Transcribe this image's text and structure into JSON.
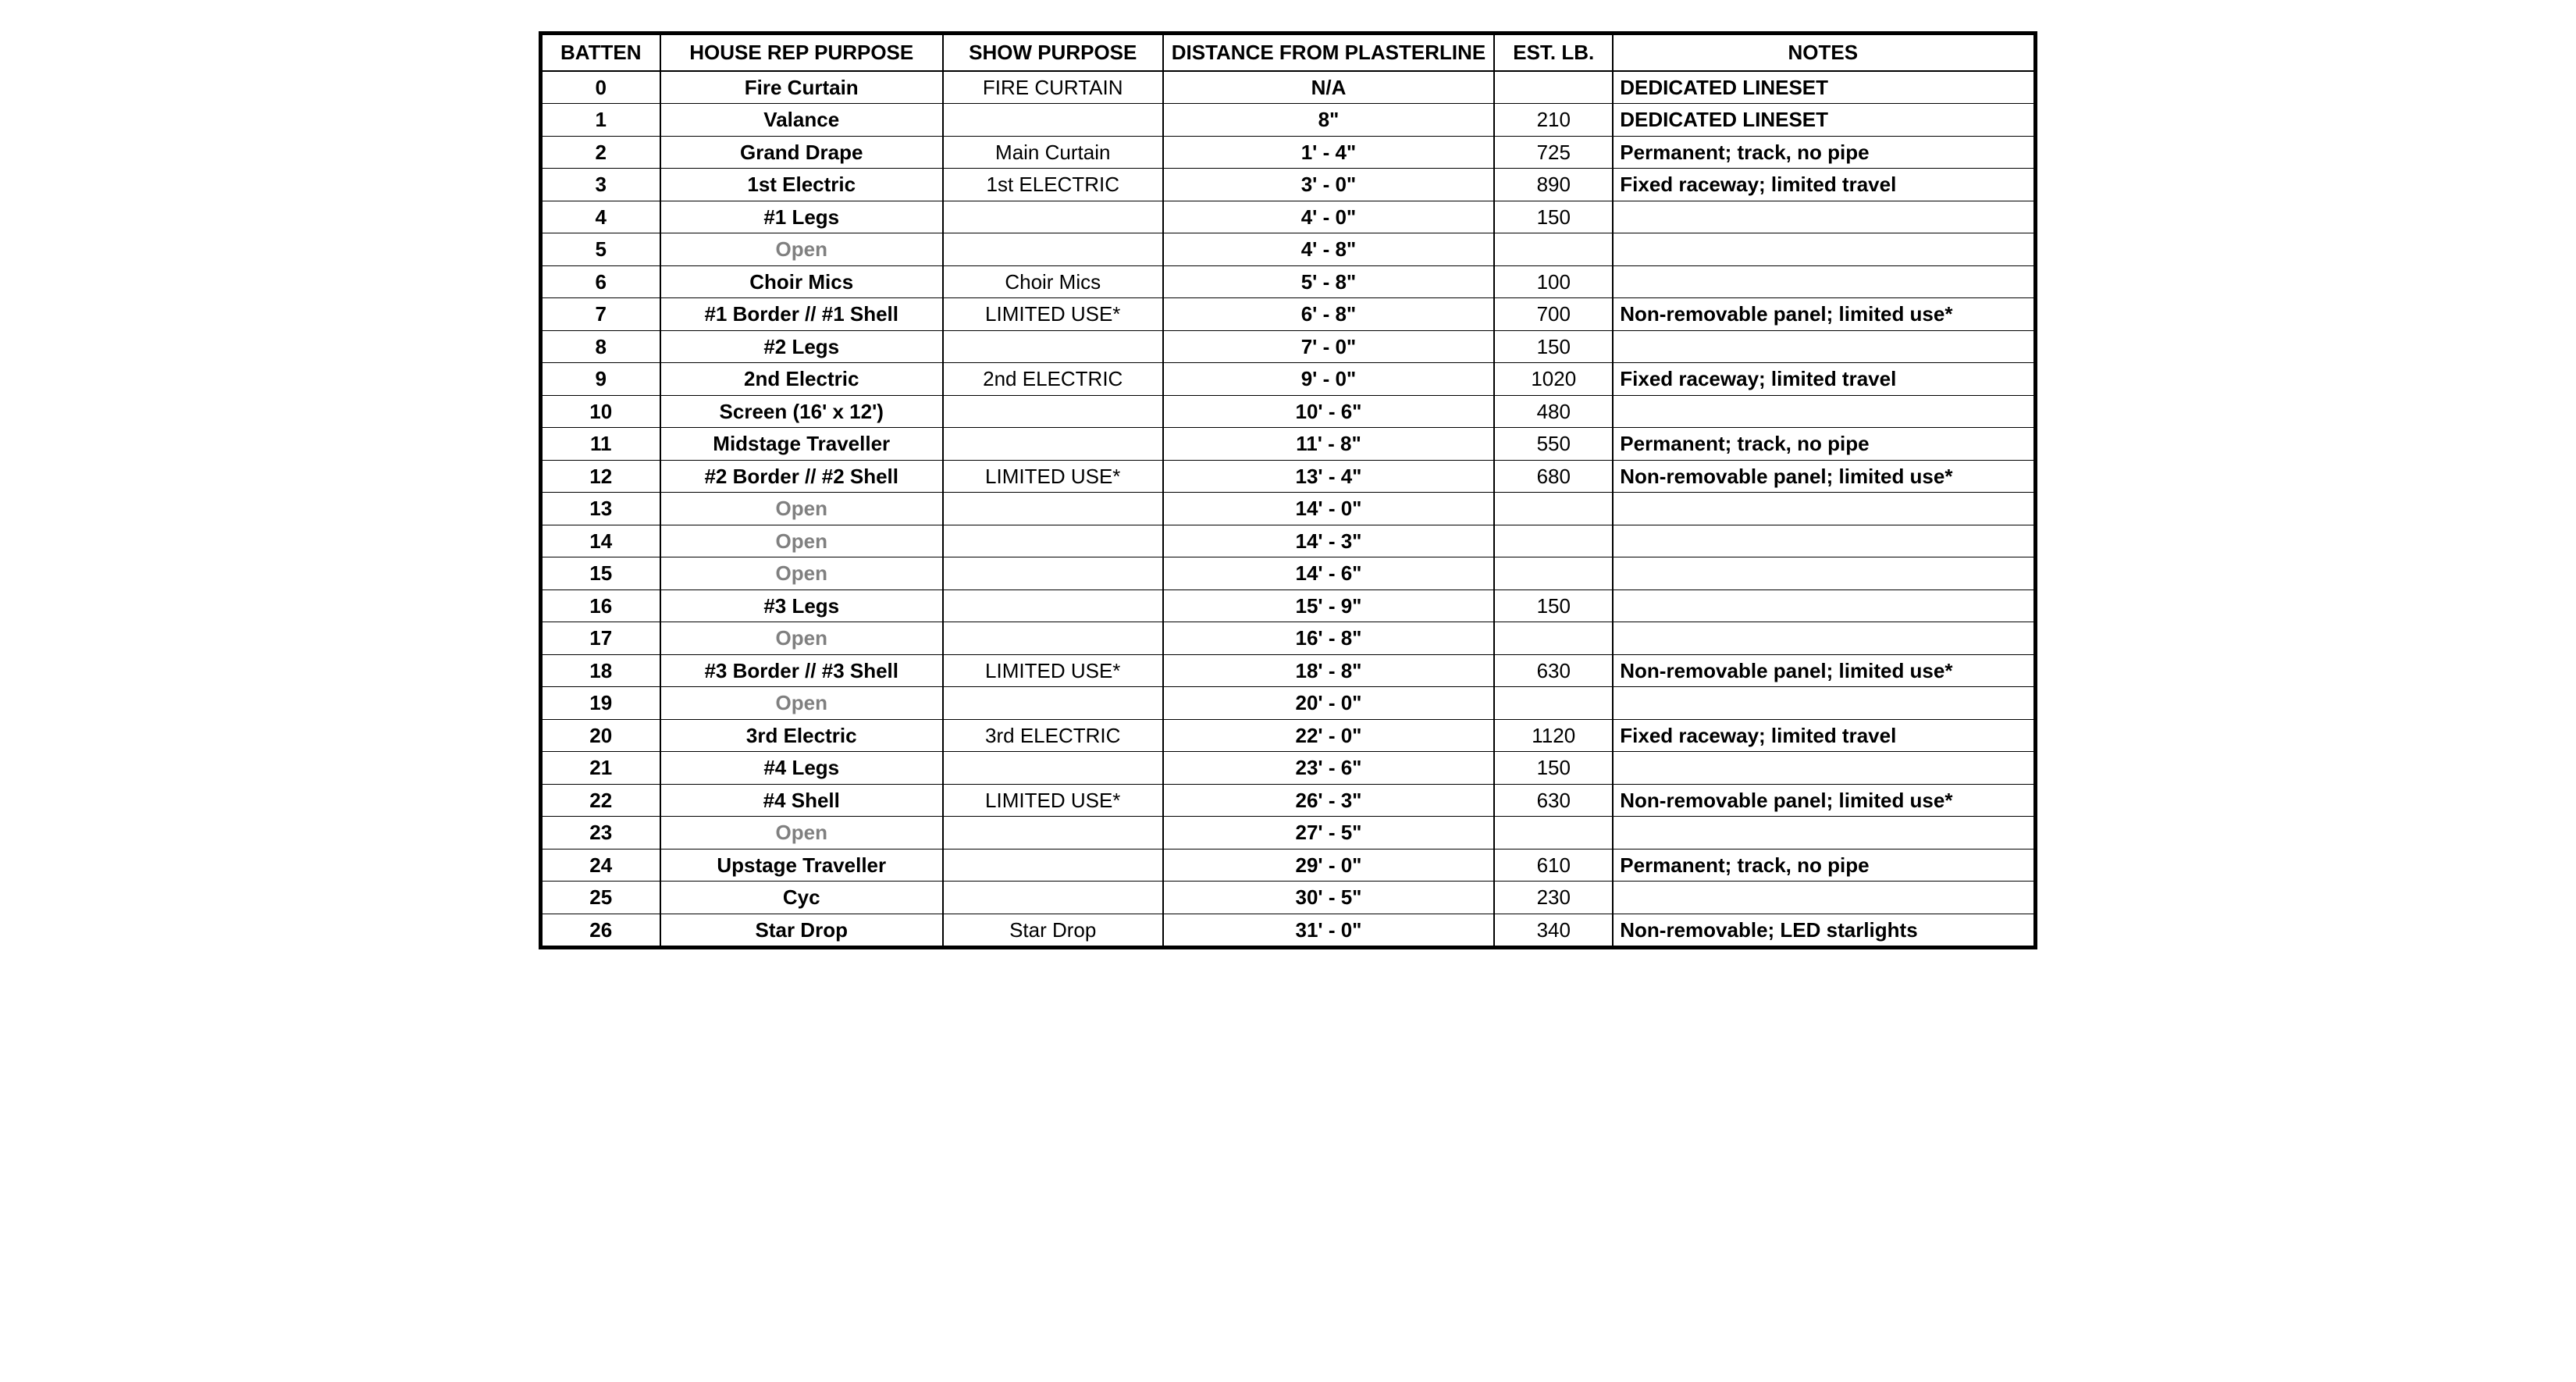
{
  "headers": {
    "batten": "BATTEN",
    "house": "HOUSE REP PURPOSE",
    "show": "SHOW PURPOSE",
    "dist": "DISTANCE FROM PLASTERLINE",
    "lb": "EST. LB.",
    "notes": "NOTES"
  },
  "rows": [
    {
      "batten": "0",
      "house": "Fire Curtain",
      "show": "FIRE CURTAIN",
      "dist": "N/A",
      "lb": "",
      "notes": "DEDICATED LINESET"
    },
    {
      "batten": "1",
      "house": "Valance",
      "show": "",
      "dist": "8\"",
      "lb": "210",
      "notes": "DEDICATED LINESET"
    },
    {
      "batten": "2",
      "house": "Grand Drape",
      "show": "Main Curtain",
      "dist": "1' - 4\"",
      "lb": "725",
      "notes": "Permanent; track, no pipe"
    },
    {
      "batten": "3",
      "house": "1st Electric",
      "show": "1st ELECTRIC",
      "dist": "3' - 0\"",
      "lb": "890",
      "notes": "Fixed raceway; limited travel"
    },
    {
      "batten": "4",
      "house": "#1 Legs",
      "show": "",
      "dist": "4' - 0\"",
      "lb": "150",
      "notes": ""
    },
    {
      "batten": "5",
      "house": "Open",
      "open": true,
      "show": "",
      "dist": "4' - 8\"",
      "lb": "",
      "notes": ""
    },
    {
      "batten": "6",
      "house": "Choir Mics",
      "show": "Choir Mics",
      "dist": "5' - 8\"",
      "lb": "100",
      "notes": ""
    },
    {
      "batten": "7",
      "house": "#1 Border // #1 Shell",
      "show": "LIMITED USE*",
      "dist": "6' - 8\"",
      "lb": "700",
      "notes": "Non-removable panel; limited use*"
    },
    {
      "batten": "8",
      "house": "#2 Legs",
      "show": "",
      "dist": "7' - 0\"",
      "lb": "150",
      "notes": ""
    },
    {
      "batten": "9",
      "house": "2nd Electric",
      "show": "2nd ELECTRIC",
      "dist": "9' - 0\"",
      "lb": "1020",
      "notes": "Fixed raceway; limited travel"
    },
    {
      "batten": "10",
      "house": "Screen (16' x 12')",
      "show": "",
      "dist": "10' - 6\"",
      "lb": "480",
      "notes": ""
    },
    {
      "batten": "11",
      "house": "Midstage Traveller",
      "show": "",
      "dist": "11' - 8\"",
      "lb": "550",
      "notes": "Permanent; track, no pipe"
    },
    {
      "batten": "12",
      "house": "#2 Border // #2 Shell",
      "show": "LIMITED USE*",
      "dist": "13' - 4\"",
      "lb": "680",
      "notes": "Non-removable panel; limited use*"
    },
    {
      "batten": "13",
      "house": "Open",
      "open": true,
      "show": "",
      "dist": "14' - 0\"",
      "lb": "",
      "notes": ""
    },
    {
      "batten": "14",
      "house": "Open",
      "open": true,
      "show": "",
      "dist": "14' - 3\"",
      "lb": "",
      "notes": ""
    },
    {
      "batten": "15",
      "house": "Open",
      "open": true,
      "show": "",
      "dist": "14' - 6\"",
      "lb": "",
      "notes": ""
    },
    {
      "batten": "16",
      "house": "#3 Legs",
      "show": "",
      "dist": "15' - 9\"",
      "lb": "150",
      "notes": ""
    },
    {
      "batten": "17",
      "house": "Open",
      "open": true,
      "show": "",
      "dist": "16' - 8\"",
      "lb": "",
      "notes": ""
    },
    {
      "batten": "18",
      "house": "#3 Border // #3 Shell",
      "show": "LIMITED USE*",
      "dist": "18' - 8\"",
      "lb": "630",
      "notes": "Non-removable panel; limited use*"
    },
    {
      "batten": "19",
      "house": "Open",
      "open": true,
      "show": "",
      "dist": "20' - 0\"",
      "lb": "",
      "notes": ""
    },
    {
      "batten": "20",
      "house": "3rd Electric",
      "show": "3rd ELECTRIC",
      "dist": "22' - 0\"",
      "lb": "1120",
      "notes": "Fixed raceway; limited travel"
    },
    {
      "batten": "21",
      "house": "#4 Legs",
      "show": "",
      "dist": "23' - 6\"",
      "lb": "150",
      "notes": ""
    },
    {
      "batten": "22",
      "house": "#4 Shell",
      "show": "LIMITED USE*",
      "dist": "26' - 3\"",
      "lb": "630",
      "notes": "Non-removable panel; limited use*"
    },
    {
      "batten": "23",
      "house": "Open",
      "open": true,
      "show": "",
      "dist": "27' - 5\"",
      "lb": "",
      "notes": ""
    },
    {
      "batten": "24",
      "house": "Upstage Traveller",
      "show": "",
      "dist": "29' - 0\"",
      "lb": "610",
      "notes": "Permanent; track, no pipe"
    },
    {
      "batten": "25",
      "house": "Cyc",
      "show": "",
      "dist": "30' - 5\"",
      "lb": "230",
      "notes": ""
    },
    {
      "batten": "26",
      "house": "Star Drop",
      "show": "Star Drop",
      "dist": "31' - 0\"",
      "lb": "340",
      "notes": "Non-removable; LED starlights"
    }
  ],
  "style": {
    "border_color": "#000000",
    "background_color": "#ffffff",
    "open_text_color": "#808080",
    "font_family": "Arial",
    "header_fontsize": 26,
    "cell_fontsize": 26
  }
}
